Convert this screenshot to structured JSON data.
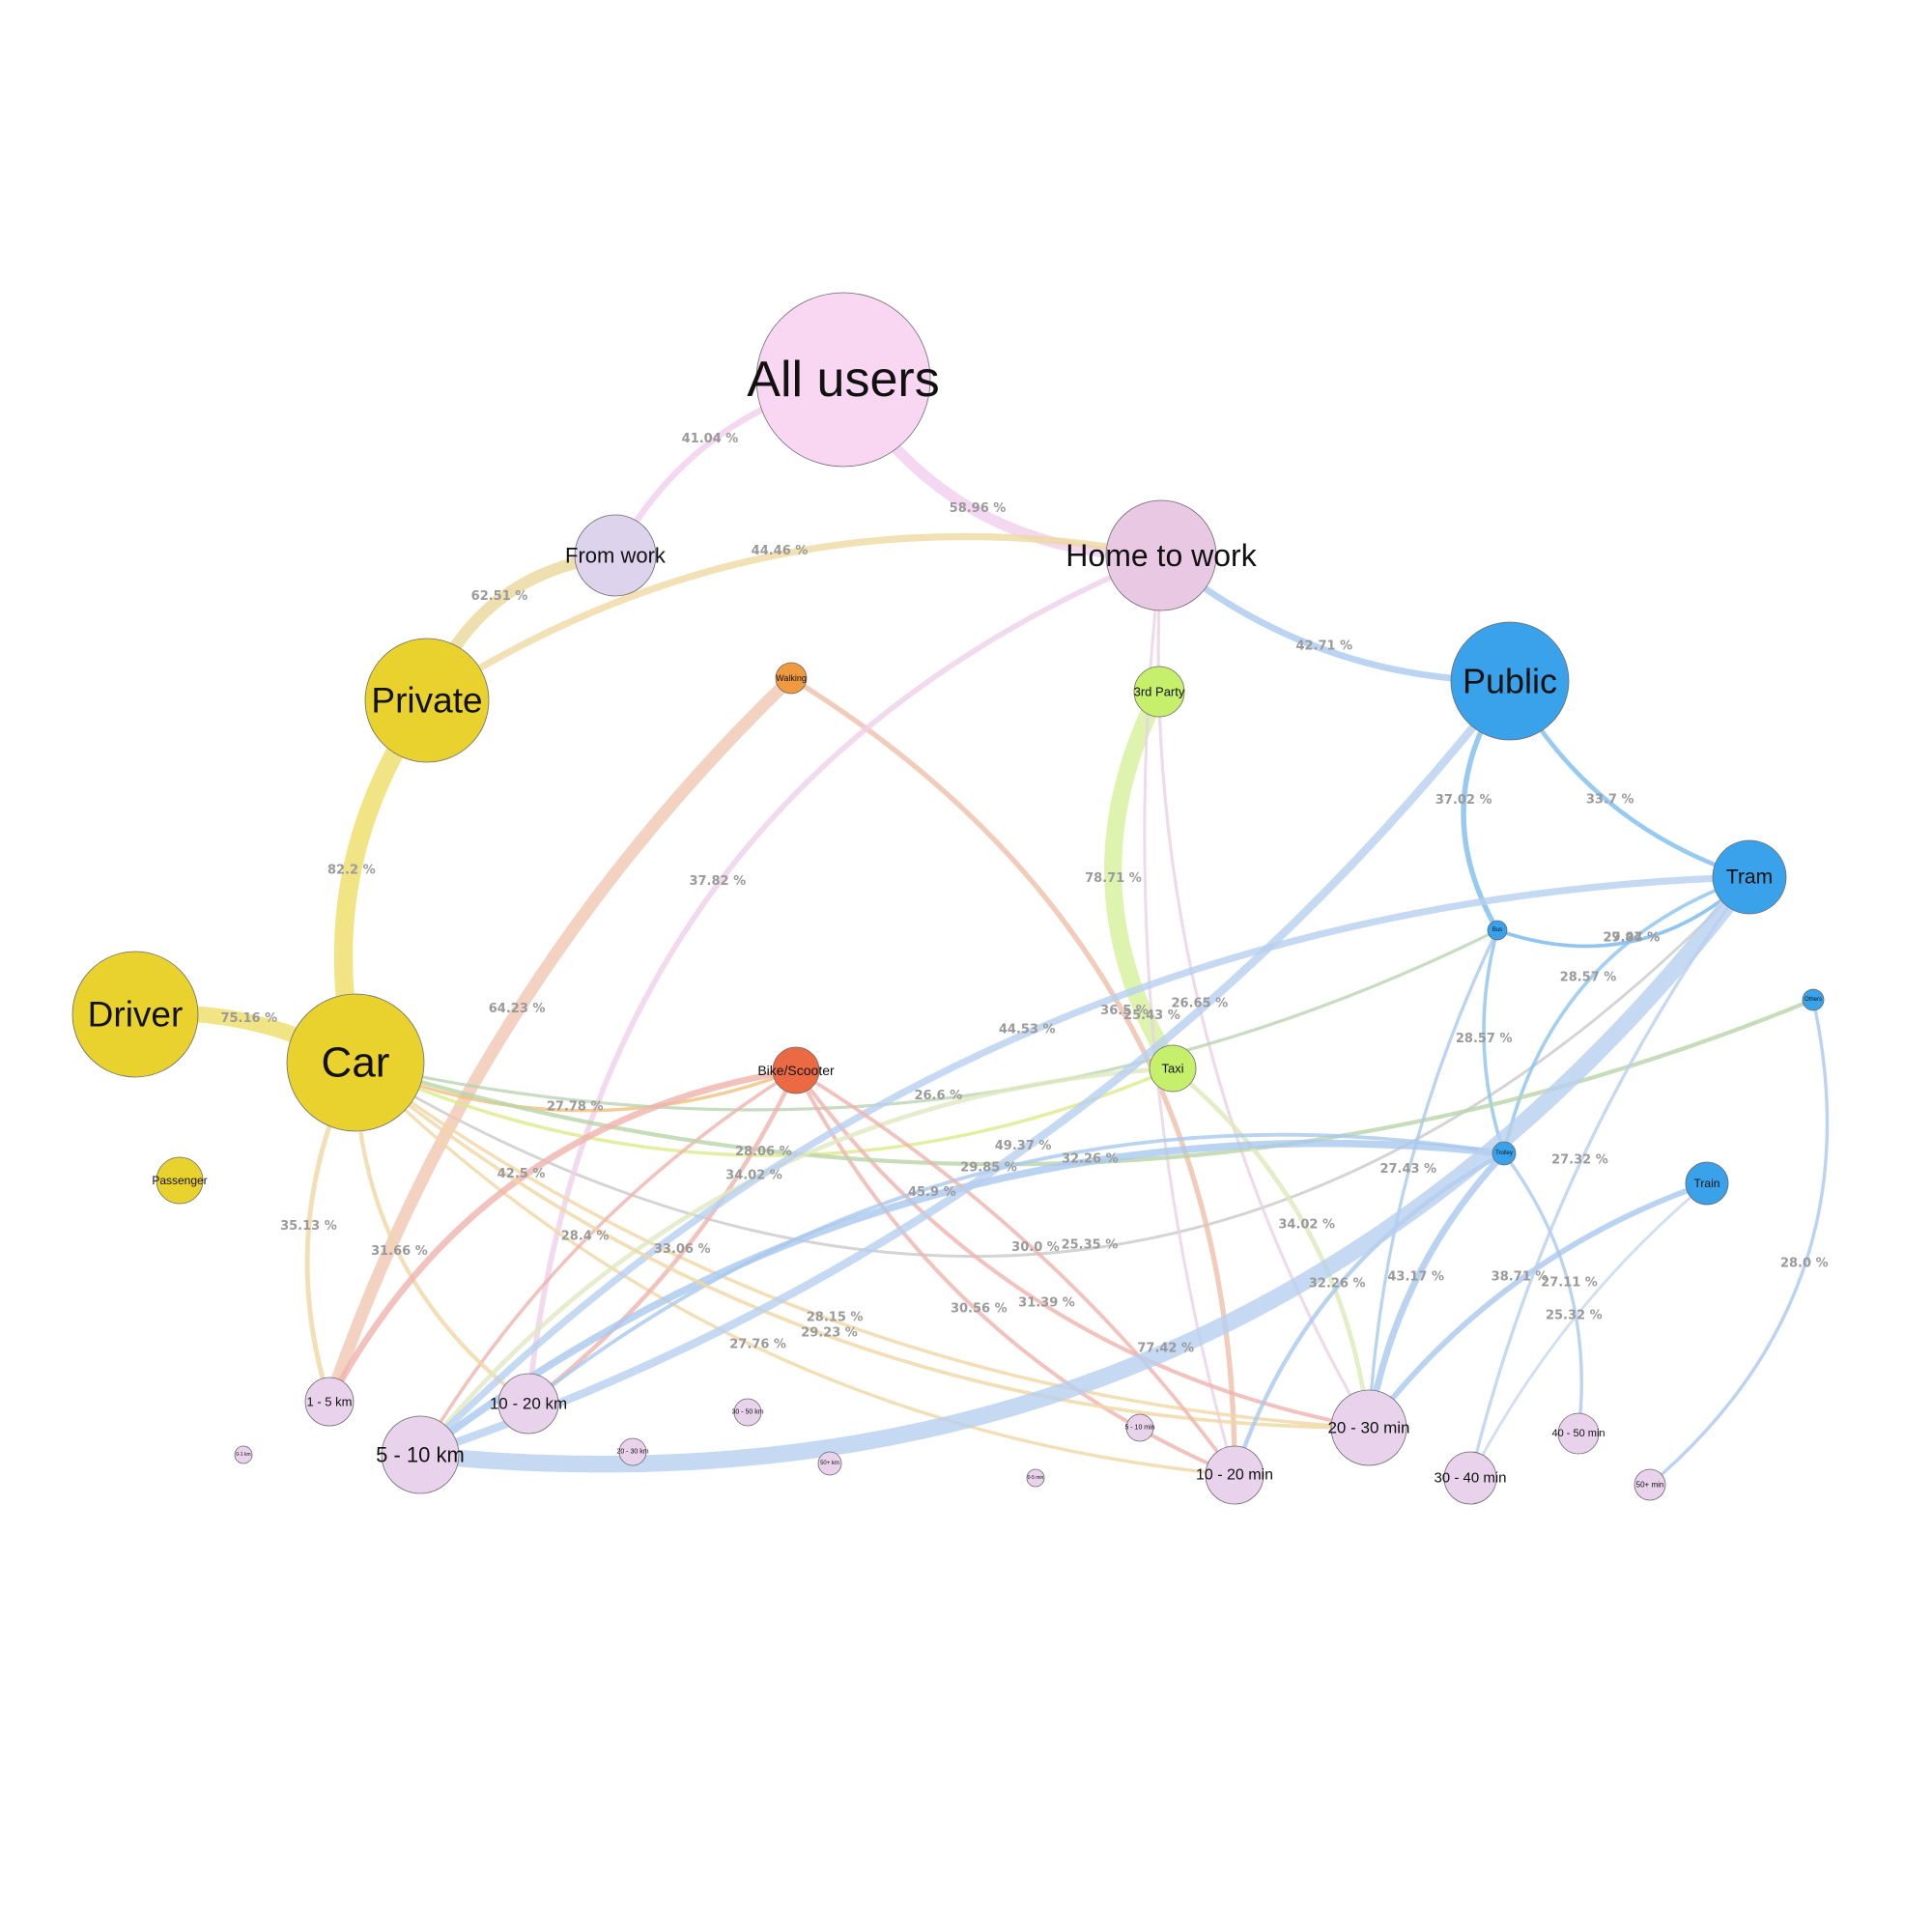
{
  "nodes": [
    {
      "id": "all",
      "label": "All users",
      "color": "#f9d6f2"
    },
    {
      "id": "from",
      "label": "From work",
      "color": "#ddd3ec"
    },
    {
      "id": "home",
      "label": "Home to work",
      "color": "#e9c8e4"
    },
    {
      "id": "private",
      "label": "Private",
      "color": "#e9d22e"
    },
    {
      "id": "public",
      "label": "Public",
      "color": "#3aa2ea"
    },
    {
      "id": "walking",
      "label": "Walking",
      "color": "#ef9a3e"
    },
    {
      "id": "third",
      "label": "3rd Party",
      "color": "#c6ef6b"
    },
    {
      "id": "driver",
      "label": "Driver",
      "color": "#e9d22e"
    },
    {
      "id": "car",
      "label": "Car",
      "color": "#e9d22e"
    },
    {
      "id": "passenger",
      "label": "Passenger",
      "color": "#e9d22e"
    },
    {
      "id": "bike",
      "label": "Bike/Scooter",
      "color": "#eb6a44"
    },
    {
      "id": "taxi",
      "label": "Taxi",
      "color": "#c6ef6b"
    },
    {
      "id": "tram",
      "label": "Tram",
      "color": "#3aa2ea"
    },
    {
      "id": "bus",
      "label": "Bus",
      "color": "#3aa2ea"
    },
    {
      "id": "others",
      "label": "Others",
      "color": "#3aa2ea"
    },
    {
      "id": "trolley",
      "label": "Trolley",
      "color": "#3aa2ea"
    },
    {
      "id": "train",
      "label": "Train",
      "color": "#3aa2ea"
    },
    {
      "id": "km1_5",
      "label": "1 - 5 km",
      "color": "#e9d2ec"
    },
    {
      "id": "km10_20",
      "label": "10 - 20 km",
      "color": "#e9d2ec"
    },
    {
      "id": "km5_10",
      "label": "5 - 10 km",
      "color": "#e9d2ec"
    },
    {
      "id": "km0_1",
      "label": "0-1 km",
      "color": "#e9d2ec"
    },
    {
      "id": "km20_30",
      "label": "20 - 30 km",
      "color": "#e9d2ec"
    },
    {
      "id": "km30_50",
      "label": "30 - 50 km",
      "color": "#e9d2ec"
    },
    {
      "id": "km50",
      "label": "50+ km",
      "color": "#e9d2ec"
    },
    {
      "id": "min0_5",
      "label": "0-5 min",
      "color": "#e9d2ec"
    },
    {
      "id": "min5_10",
      "label": "5 - 10 min",
      "color": "#e9d2ec"
    },
    {
      "id": "min10_20",
      "label": "10 - 20 min",
      "color": "#e9d2ec"
    },
    {
      "id": "min20_30",
      "label": "20 - 30 min",
      "color": "#e9d2ec"
    },
    {
      "id": "min30_40",
      "label": "30 - 40 min",
      "color": "#e9d2ec"
    },
    {
      "id": "min40_50",
      "label": "40 - 50 min",
      "color": "#e9d2ec"
    },
    {
      "id": "min50",
      "label": "50+ min",
      "color": "#e9d2ec"
    }
  ],
  "edges": [
    {
      "source": "all",
      "target": "home",
      "label": "58.96 %",
      "value": 58.96,
      "color": "#f1cdec"
    },
    {
      "source": "all",
      "target": "from",
      "label": "41.04 %",
      "value": 41.04,
      "color": "#f1cdec"
    },
    {
      "source": "from",
      "target": "private",
      "label": "62.51 %",
      "value": 62.51,
      "color": "#e9d89a"
    },
    {
      "source": "home",
      "target": "private",
      "label": "44.46 %",
      "value": 44.46,
      "color": "#eed9a2"
    },
    {
      "source": "home",
      "target": "public",
      "label": "42.71 %",
      "value": 42.71,
      "color": "#a9c9ee"
    },
    {
      "source": "private",
      "target": "car",
      "label": "82.2 %",
      "value": 82.2,
      "color": "#eedd66"
    },
    {
      "source": "car",
      "target": "driver",
      "label": "75.16 %",
      "value": 75.16,
      "color": "#eedd66"
    },
    {
      "source": "third",
      "target": "taxi",
      "label": "78.71 %",
      "value": 78.71,
      "color": "#d4f09a"
    },
    {
      "source": "public",
      "target": "tram",
      "label": "33.7 %",
      "value": 33.7,
      "color": "#7cbdee"
    },
    {
      "source": "public",
      "target": "bus",
      "label": "37.02 %",
      "value": 37.02,
      "color": "#7cbdee"
    },
    {
      "source": "car",
      "target": "tram",
      "label": "25.35 %",
      "value": 25.35,
      "color": "#c9c9c9"
    },
    {
      "source": "walking",
      "target": "km1_5",
      "label": "64.23 %",
      "value": 64.23,
      "color": "#f0c7b1"
    },
    {
      "source": "walking",
      "target": "min10_20",
      "label": "36.5 %",
      "value": 36.5,
      "color": "#efbfaa"
    },
    {
      "source": "home",
      "target": "km10_20",
      "label": "37.82 %",
      "value": 37.82,
      "color": "#edd0ea"
    },
    {
      "source": "home",
      "target": "min20_30",
      "label": "26.65 %",
      "value": 26.65,
      "color": "#ead1e4"
    },
    {
      "source": "home",
      "target": "min10_20",
      "label": "25.43 %",
      "value": 25.43,
      "color": "#ead1e4"
    },
    {
      "source": "bus",
      "target": "tram",
      "label": "27.94 %",
      "value": 27.94,
      "color": "#8cc3ee"
    },
    {
      "source": "tram",
      "target": "bus",
      "label": "29.47 %",
      "value": 29.47,
      "color": "#8cc3ee"
    },
    {
      "source": "tram",
      "target": "trolley",
      "label": "28.57 %",
      "value": 28.57,
      "color": "#8cc3ee"
    },
    {
      "source": "bus",
      "target": "trolley",
      "label": "28.57 %",
      "value": 28.57,
      "color": "#8cc3ee"
    },
    {
      "source": "car",
      "target": "bike",
      "label": "27.78 %",
      "value": 27.78,
      "color": "#f0c07a"
    },
    {
      "source": "car",
      "target": "min20_30",
      "label": "28.15 %",
      "value": 28.15,
      "color": "#f0d7a2"
    },
    {
      "source": "car",
      "target": "min10_20",
      "label": "27.76 %",
      "value": 27.76,
      "color": "#f0d7a2"
    },
    {
      "source": "car",
      "target": "taxi",
      "label": "28.06 %",
      "value": 28.06,
      "color": "#dcea8a"
    },
    {
      "source": "car",
      "target": "bus",
      "label": "26.6 %",
      "value": 26.6,
      "color": "#b9d3b1"
    },
    {
      "source": "bike",
      "target": "km5_10",
      "label": "28.4 %",
      "value": 28.4,
      "color": "#efb3ad"
    },
    {
      "source": "bike",
      "target": "min10_20",
      "label": "30.56 %",
      "value": 30.56,
      "color": "#efb3ad"
    },
    {
      "source": "bike",
      "target": "min20_30",
      "label": "31.39 %",
      "value": 31.39,
      "color": "#efb3ad"
    },
    {
      "source": "car",
      "target": "km1_5",
      "label": "35.13 %",
      "value": 35.13,
      "color": "#f0d7a2"
    },
    {
      "source": "car",
      "target": "km10_20",
      "label": "31.66 %",
      "value": 31.66,
      "color": "#f0d7a2"
    },
    {
      "source": "car",
      "target": "others",
      "label": "32.26 %",
      "value": 32.26,
      "color": "#b9d3a8"
    },
    {
      "source": "taxi",
      "target": "min20_30",
      "label": "34.02 %",
      "value": 34.02,
      "color": "#dce8b8"
    },
    {
      "source": "bike",
      "target": "km10_20",
      "label": "33.06 %",
      "value": 33.06,
      "color": "#efb3ad"
    },
    {
      "source": "bike",
      "target": "km1_5",
      "label": "42.5 %",
      "value": 42.5,
      "color": "#efb3ad"
    },
    {
      "source": "taxi",
      "target": "km5_10",
      "label": "34.02 %",
      "value": 34.02,
      "color": "#dfe8bf"
    },
    {
      "source": "trolley",
      "target": "km10_20",
      "label": "29.85 %",
      "value": 29.85,
      "color": "#a9c8ee"
    },
    {
      "source": "trolley",
      "target": "km5_10",
      "label": "45.9 %",
      "value": 45.9,
      "color": "#a9c8ee"
    },
    {
      "source": "tram",
      "target": "km5_10",
      "label": "44.53 %",
      "value": 44.53,
      "color": "#b6cfef"
    },
    {
      "source": "car",
      "target": "min20_30",
      "label": "29.23 %",
      "value": 29.23,
      "color": "#f0d7a2"
    },
    {
      "source": "trolley",
      "target": "min20_30",
      "label": "43.17 %",
      "value": 43.17,
      "color": "#a9c8ee"
    },
    {
      "source": "train",
      "target": "min20_30",
      "label": "38.71 %",
      "value": 38.71,
      "color": "#a9c8ee"
    },
    {
      "source": "trolley",
      "target": "min40_50",
      "label": "27.11 %",
      "value": 27.11,
      "color": "#a9c8ee"
    },
    {
      "source": "tram",
      "target": "min30_40",
      "label": "27.32 %",
      "value": 27.32,
      "color": "#b6cfef"
    },
    {
      "source": "trolley",
      "target": "min10_20",
      "label": "32.26 %",
      "value": 32.26,
      "color": "#a9c8ee"
    },
    {
      "source": "bus",
      "target": "min20_30",
      "label": "27.43 %",
      "value": 27.43,
      "color": "#a9c8ee"
    },
    {
      "source": "train",
      "target": "min30_40",
      "label": "25.32 %",
      "value": 25.32,
      "color": "#c8d7ee"
    },
    {
      "source": "others",
      "target": "min50",
      "label": "28.0 %",
      "value": 28.0,
      "color": "#a9c8ee"
    },
    {
      "source": "bike",
      "target": "min10_20",
      "label": "30.0 %",
      "value": 30.0,
      "color": "#efb3ad"
    },
    {
      "source": "tram",
      "target": "km5_10",
      "label": "77.42 %",
      "value": 77.42,
      "color": "#b6cfef"
    },
    {
      "source": "public",
      "target": "km5_10",
      "label": "49.37 %",
      "value": 49.37,
      "color": "#b6cfef"
    }
  ]
}
